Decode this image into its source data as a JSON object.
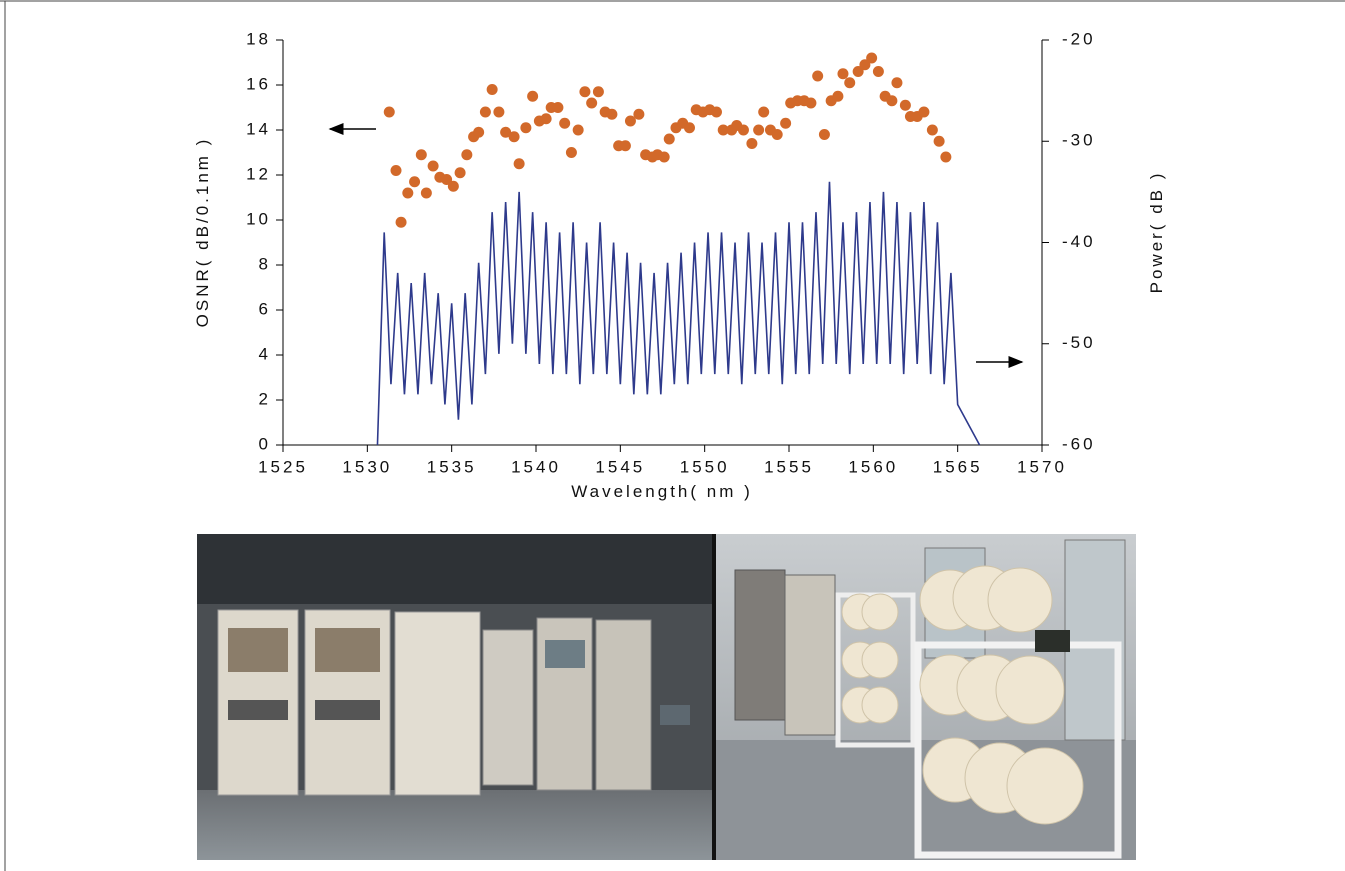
{
  "chart_data": {
    "type": "scatter",
    "xlabel": "Wavelength( nm )",
    "ylabel": "OSNR( dB/0.1nm )",
    "y2label": "Power( dB )",
    "xlim": [
      1525,
      1570
    ],
    "xticks": [
      1525,
      1530,
      1535,
      1540,
      1545,
      1550,
      1555,
      1560,
      1565,
      1570
    ],
    "ylim": [
      0,
      18
    ],
    "yticks": [
      0,
      2,
      4,
      6,
      8,
      10,
      12,
      14,
      16,
      18
    ],
    "y2lim": [
      -60,
      -20
    ],
    "y2ticks": [
      -60,
      -50,
      -40,
      -30,
      -20
    ],
    "grid": false,
    "series": [
      {
        "type": "line",
        "axis": "y2",
        "color": "#2e3a8c",
        "x": [
          1530.6,
          1531.0,
          1531.4,
          1531.8,
          1532.2,
          1532.6,
          1533.0,
          1533.4,
          1533.8,
          1534.2,
          1534.6,
          1535.0,
          1535.4,
          1535.8,
          1536.2,
          1536.6,
          1537.0,
          1537.4,
          1537.8,
          1538.2,
          1538.6,
          1539.0,
          1539.4,
          1539.8,
          1540.2,
          1540.6,
          1541.0,
          1541.4,
          1541.8,
          1542.2,
          1542.6,
          1543.0,
          1543.4,
          1543.8,
          1544.2,
          1544.6,
          1545.0,
          1545.4,
          1545.8,
          1546.2,
          1546.6,
          1547.0,
          1547.4,
          1547.8,
          1548.2,
          1548.6,
          1549.0,
          1549.4,
          1549.8,
          1550.2,
          1550.6,
          1551.0,
          1551.4,
          1551.8,
          1552.2,
          1552.6,
          1553.0,
          1553.4,
          1553.8,
          1554.2,
          1554.6,
          1555.0,
          1555.4,
          1555.8,
          1556.2,
          1556.6,
          1557.0,
          1557.4,
          1557.8,
          1558.2,
          1558.6,
          1559.0,
          1559.4,
          1559.8,
          1560.2,
          1560.6,
          1561.0,
          1561.4,
          1561.8,
          1562.2,
          1562.6,
          1563.0,
          1563.4,
          1563.8,
          1564.2,
          1564.6,
          1565.0,
          1566.3
        ],
        "values": [
          -60,
          -39,
          -54,
          -43,
          -55,
          -44,
          -55,
          -43,
          -54,
          -45,
          -56,
          -46,
          -57.5,
          -45,
          -56,
          -42,
          -53,
          -37,
          -51,
          -36,
          -50,
          -35,
          -51,
          -37,
          -52,
          -38,
          -53,
          -39,
          -53,
          -38,
          -54,
          -40,
          -53,
          -38,
          -53,
          -40,
          -54,
          -41,
          -55,
          -42,
          -55,
          -43,
          -55,
          -42,
          -54,
          -41,
          -54,
          -40,
          -53,
          -39,
          -53,
          -39,
          -53,
          -40,
          -54,
          -39,
          -53,
          -40,
          -53,
          -39,
          -54,
          -38,
          -53,
          -38,
          -53,
          -37,
          -52,
          -34,
          -52,
          -38,
          -53,
          -37,
          -52,
          -36,
          -52,
          -35,
          -52,
          -36,
          -53,
          -37,
          -52,
          -36,
          -53,
          -38,
          -54,
          -43,
          -56,
          -60
        ]
      },
      {
        "type": "scatter",
        "axis": "y",
        "color": "#d2692a",
        "x": [
          1531.3,
          1531.7,
          1532.0,
          1532.4,
          1532.8,
          1533.2,
          1533.5,
          1533.9,
          1534.3,
          1534.7,
          1535.1,
          1535.5,
          1535.9,
          1536.3,
          1536.6,
          1537.0,
          1537.4,
          1537.8,
          1538.2,
          1538.7,
          1539.0,
          1539.4,
          1539.8,
          1540.2,
          1540.6,
          1540.9,
          1541.3,
          1541.7,
          1542.1,
          1542.5,
          1542.9,
          1543.3,
          1543.7,
          1544.1,
          1544.5,
          1544.9,
          1545.3,
          1545.6,
          1546.1,
          1546.5,
          1546.9,
          1547.2,
          1547.6,
          1547.9,
          1548.3,
          1548.7,
          1549.1,
          1549.5,
          1549.9,
          1550.3,
          1550.7,
          1551.1,
          1551.6,
          1551.9,
          1552.3,
          1552.8,
          1553.2,
          1553.5,
          1553.9,
          1554.3,
          1554.8,
          1555.1,
          1555.5,
          1555.9,
          1556.3,
          1556.7,
          1557.1,
          1557.5,
          1557.9,
          1558.2,
          1558.6,
          1559.1,
          1559.5,
          1559.9,
          1560.3,
          1560.7,
          1561.1,
          1561.4,
          1561.9,
          1562.2,
          1562.6,
          1563.0,
          1563.5,
          1563.9,
          1564.3
        ],
        "values": [
          14.8,
          12.2,
          9.9,
          11.2,
          11.7,
          12.9,
          11.2,
          12.4,
          11.9,
          11.8,
          11.5,
          12.1,
          12.9,
          13.7,
          13.9,
          14.8,
          15.8,
          14.8,
          13.9,
          13.7,
          12.5,
          14.1,
          15.5,
          14.4,
          14.5,
          15.0,
          15.0,
          14.3,
          13.0,
          14.0,
          15.7,
          15.2,
          15.7,
          14.8,
          14.7,
          13.3,
          13.3,
          14.4,
          14.7,
          12.9,
          12.8,
          12.9,
          12.8,
          13.6,
          14.1,
          14.3,
          14.1,
          14.9,
          14.8,
          14.9,
          14.8,
          14.0,
          14.0,
          14.2,
          14.0,
          13.4,
          14.0,
          14.8,
          14.0,
          13.8,
          14.3,
          15.2,
          15.3,
          15.3,
          15.2,
          16.4,
          13.8,
          15.3,
          15.5,
          16.5,
          16.1,
          16.6,
          16.9,
          17.2,
          16.6,
          15.5,
          15.3,
          16.1,
          15.1,
          14.6,
          14.6,
          14.8,
          14.0,
          13.5,
          12.8
        ]
      }
    ]
  }
}
